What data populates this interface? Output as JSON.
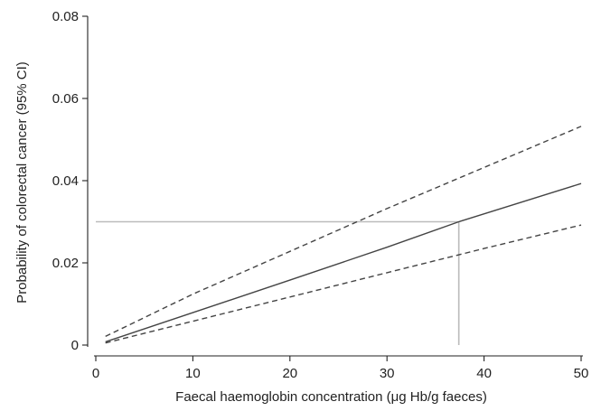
{
  "chart_data": {
    "type": "line",
    "title": "",
    "xlabel": "Faecal haemoglobin concentration (μg Hb/g faeces)",
    "ylabel": "Probability of colorectal cancer (95% CI)",
    "xlim": [
      0,
      50
    ],
    "ylim": [
      0,
      0.08
    ],
    "xticks": [
      0,
      10,
      20,
      30,
      40,
      50
    ],
    "xtick_labels": [
      "0",
      "10",
      "20",
      "30",
      "40",
      "50"
    ],
    "yticks": [
      0,
      0.02,
      0.04,
      0.06,
      0.08
    ],
    "ytick_labels": [
      "0",
      "0.02",
      "0.04",
      "0.06",
      "0.08"
    ],
    "grid": false,
    "series": [
      {
        "style": "solid",
        "color": "#444444",
        "x": [
          1,
          10,
          20,
          30,
          37.4,
          50
        ],
        "y": [
          0.0008,
          0.0079,
          0.0158,
          0.0238,
          0.03,
          0.0393
        ]
      },
      {
        "style": "dashed",
        "color": "#444444",
        "x": [
          1,
          10,
          20,
          30,
          40,
          50
        ],
        "y": [
          0.0021,
          0.0124,
          0.0228,
          0.0332,
          0.0432,
          0.0532
        ]
      },
      {
        "style": "dashed",
        "color": "#444444",
        "x": [
          1,
          10,
          20,
          30,
          40,
          50
        ],
        "y": [
          0.0005,
          0.0058,
          0.0117,
          0.0176,
          0.0235,
          0.0292
        ]
      }
    ],
    "reference_lines": {
      "color": "#bbbbbb",
      "horizontal": {
        "y": 0.03,
        "x_from": 0,
        "x_to": 37.4
      },
      "vertical": {
        "x": 37.4,
        "y_from": 0,
        "y_to": 0.03
      }
    }
  }
}
